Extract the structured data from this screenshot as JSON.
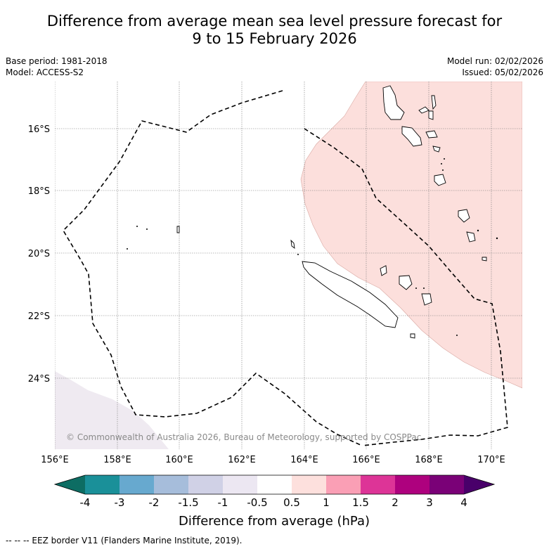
{
  "title": {
    "line1": "Difference from average mean sea level pressure forecast for",
    "line2": "9 to 15 February 2026"
  },
  "meta": {
    "base_period": "Base period: 1981-2018",
    "model": "Model: ACCESS-S2",
    "model_run": "Model run: 02/02/2026",
    "issued": "Issued: 05/02/2026"
  },
  "map": {
    "lat_labels": [
      "16°S",
      "18°S",
      "20°S",
      "22°S",
      "24°S"
    ],
    "lon_labels": [
      "156°E",
      "158°E",
      "160°E",
      "162°E",
      "164°E",
      "166°E",
      "168°E",
      "170°E"
    ],
    "copyright": "© Commonwealth of Australia 2026, Bureau of Meteorology, supported by COSPPac",
    "colors": {
      "positive_anomaly": "#fcdfdc",
      "slight_negative": "#efeaf1",
      "eez_line": "#000000"
    }
  },
  "colorbar": {
    "tick_labels": [
      "-4",
      "-3",
      "-2",
      "-1.5",
      "-1",
      "-0.5",
      "0.5",
      "1",
      "1.5",
      "2",
      "3",
      "4"
    ],
    "colors": [
      "#0d6d63",
      "#1a9099",
      "#67a9cf",
      "#a6bddb",
      "#d0d1e6",
      "#ece7f2",
      "#ffffff",
      "#fde0dd",
      "#fa9fb5",
      "#dd3497",
      "#ae017e",
      "#7a0177",
      "#49006a"
    ],
    "label": "Difference from average (hPa)"
  },
  "footnote": "--  --  -- EEZ border V11 (Flanders Marine Institute, 2019)."
}
